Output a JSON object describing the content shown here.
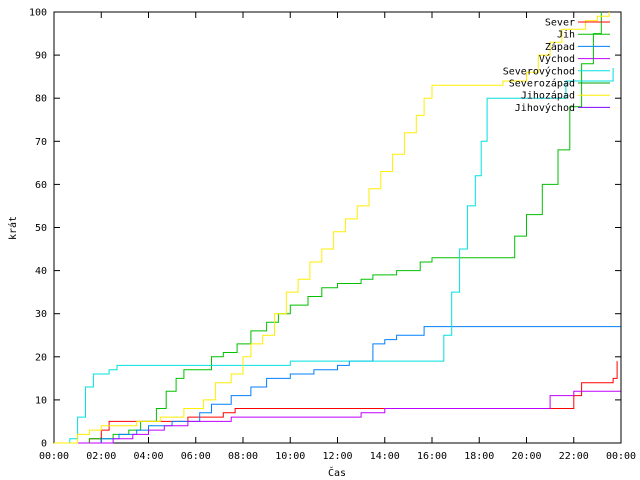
{
  "chart_data": {
    "type": "line",
    "title": "",
    "xlabel": "Čas",
    "ylabel": "krát",
    "xlim": [
      "00:00",
      "24:00"
    ],
    "ylim": [
      0,
      100
    ],
    "grid": false,
    "legend_position": "top-right",
    "x_ticks": [
      "00:00",
      "02:00",
      "04:00",
      "06:00",
      "08:00",
      "10:00",
      "12:00",
      "14:00",
      "16:00",
      "18:00",
      "20:00",
      "22:00",
      "00:00"
    ],
    "y_ticks": [
      "0",
      "10",
      "20",
      "30",
      "40",
      "50",
      "60",
      "70",
      "80",
      "90",
      "100"
    ],
    "series": [
      {
        "name": "Sever",
        "color": "#ff0000",
        "points": [
          [
            "00:00",
            0
          ],
          [
            "01:30",
            1
          ],
          [
            "02:00",
            3
          ],
          [
            "02:20",
            5
          ],
          [
            "05:40",
            6
          ],
          [
            "07:10",
            7
          ],
          [
            "07:40",
            8
          ],
          [
            "15:00",
            8
          ],
          [
            "20:50",
            8
          ],
          [
            "22:00",
            11
          ],
          [
            "22:20",
            14
          ],
          [
            "23:40",
            15
          ],
          [
            "23:50",
            19
          ]
        ]
      },
      {
        "name": "Jih",
        "color": "#00c000",
        "points": [
          [
            "00:00",
            0
          ],
          [
            "01:30",
            1
          ],
          [
            "02:30",
            2
          ],
          [
            "03:10",
            3
          ],
          [
            "03:40",
            5
          ],
          [
            "04:20",
            8
          ],
          [
            "04:45",
            12
          ],
          [
            "05:10",
            15
          ],
          [
            "05:30",
            17
          ],
          [
            "06:00",
            17
          ],
          [
            "06:40",
            20
          ],
          [
            "07:10",
            21
          ],
          [
            "07:45",
            23
          ],
          [
            "08:20",
            26
          ],
          [
            "09:00",
            28
          ],
          [
            "09:30",
            30
          ],
          [
            "10:00",
            32
          ],
          [
            "10:45",
            34
          ],
          [
            "11:20",
            36
          ],
          [
            "12:00",
            37
          ],
          [
            "13:00",
            38
          ],
          [
            "13:30",
            39
          ],
          [
            "14:30",
            40
          ],
          [
            "15:30",
            42
          ],
          [
            "16:00",
            43
          ],
          [
            "19:10",
            43
          ],
          [
            "19:30",
            48
          ],
          [
            "20:00",
            53
          ],
          [
            "20:40",
            60
          ],
          [
            "21:20",
            68
          ],
          [
            "21:50",
            78
          ],
          [
            "22:20",
            88
          ],
          [
            "22:50",
            95
          ],
          [
            "23:10",
            100
          ]
        ]
      },
      {
        "name": "Západ",
        "color": "#0080ff",
        "points": [
          [
            "00:00",
            0
          ],
          [
            "02:00",
            1
          ],
          [
            "02:45",
            2
          ],
          [
            "03:30",
            3
          ],
          [
            "04:00",
            4
          ],
          [
            "05:00",
            5
          ],
          [
            "06:10",
            7
          ],
          [
            "06:40",
            9
          ],
          [
            "07:30",
            11
          ],
          [
            "08:20",
            13
          ],
          [
            "09:00",
            15
          ],
          [
            "10:00",
            16
          ],
          [
            "11:00",
            17
          ],
          [
            "12:00",
            18
          ],
          [
            "12:30",
            19
          ],
          [
            "13:30",
            23
          ],
          [
            "14:00",
            24
          ],
          [
            "14:30",
            25
          ],
          [
            "15:40",
            27
          ],
          [
            "23:59",
            27
          ]
        ]
      },
      {
        "name": "Východ",
        "color": "#c000ff",
        "points": [
          [
            "00:00",
            0
          ],
          [
            "02:30",
            1
          ],
          [
            "03:20",
            2
          ],
          [
            "04:00",
            3
          ],
          [
            "04:40",
            4
          ],
          [
            "05:40",
            5
          ],
          [
            "07:30",
            6
          ],
          [
            "09:30",
            6
          ],
          [
            "13:00",
            7
          ],
          [
            "14:00",
            8
          ],
          [
            "20:40",
            8
          ],
          [
            "21:00",
            11
          ],
          [
            "22:00",
            12
          ],
          [
            "23:59",
            12
          ]
        ]
      },
      {
        "name": "Severovýchod",
        "color": "#00e0e0",
        "points": [
          [
            "00:00",
            0
          ],
          [
            "00:40",
            1
          ],
          [
            "01:00",
            6
          ],
          [
            "01:20",
            13
          ],
          [
            "01:40",
            16
          ],
          [
            "02:20",
            17
          ],
          [
            "02:40",
            18
          ],
          [
            "07:00",
            18
          ],
          [
            "10:00",
            19
          ],
          [
            "16:10",
            19
          ],
          [
            "16:30",
            25
          ],
          [
            "16:50",
            35
          ],
          [
            "17:10",
            45
          ],
          [
            "17:30",
            55
          ],
          [
            "17:50",
            62
          ],
          [
            "18:05",
            70
          ],
          [
            "18:20",
            80
          ],
          [
            "20:40",
            80
          ],
          [
            "21:40",
            84
          ],
          [
            "23:20",
            84
          ],
          [
            "23:40",
            87
          ]
        ]
      },
      {
        "name": "Severozápad",
        "color": "#00a000",
        "points": []
      },
      {
        "name": "Jihozápad",
        "color": "#ffee00",
        "points": [
          [
            "00:00",
            0
          ],
          [
            "01:00",
            2
          ],
          [
            "01:30",
            3
          ],
          [
            "02:00",
            4
          ],
          [
            "03:30",
            5
          ],
          [
            "04:30",
            6
          ],
          [
            "05:30",
            8
          ],
          [
            "06:20",
            10
          ],
          [
            "06:50",
            14
          ],
          [
            "07:30",
            16
          ],
          [
            "08:00",
            20
          ],
          [
            "08:20",
            23
          ],
          [
            "08:50",
            25
          ],
          [
            "09:20",
            30
          ],
          [
            "09:50",
            35
          ],
          [
            "10:20",
            38
          ],
          [
            "10:50",
            42
          ],
          [
            "11:20",
            45
          ],
          [
            "11:50",
            49
          ],
          [
            "12:20",
            52
          ],
          [
            "12:50",
            55
          ],
          [
            "13:20",
            59
          ],
          [
            "13:50",
            63
          ],
          [
            "14:20",
            67
          ],
          [
            "14:50",
            72
          ],
          [
            "15:20",
            76
          ],
          [
            "15:40",
            80
          ],
          [
            "16:00",
            83
          ],
          [
            "18:00",
            83
          ],
          [
            "19:00",
            84
          ],
          [
            "20:00",
            86
          ],
          [
            "20:30",
            90
          ],
          [
            "21:00",
            93
          ],
          [
            "21:30",
            96
          ],
          [
            "22:30",
            98
          ],
          [
            "23:00",
            99
          ],
          [
            "23:30",
            100
          ]
        ]
      },
      {
        "name": "Jihovýchod",
        "color": "#8000ff",
        "points": []
      }
    ]
  }
}
